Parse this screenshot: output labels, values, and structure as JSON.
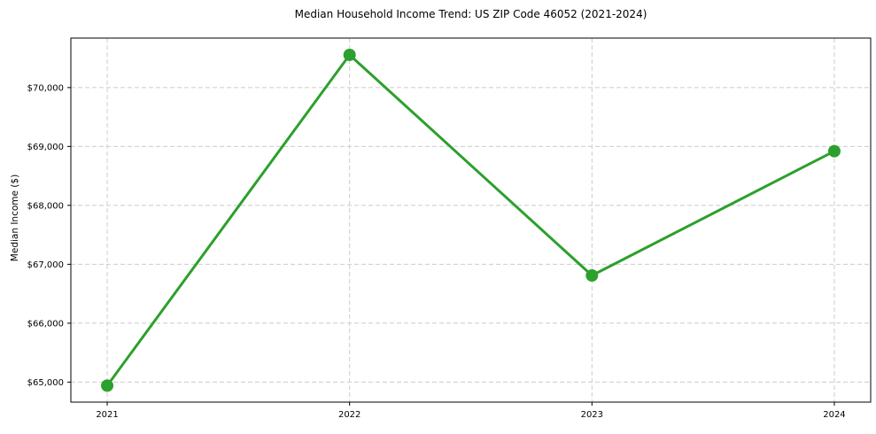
{
  "chart_data": {
    "type": "line",
    "title": "Median Household Income Trend: US ZIP Code 46052 (2021-2024)",
    "xlabel": "",
    "ylabel": "Median Income ($)",
    "categories": [
      "2021",
      "2022",
      "2023",
      "2024"
    ],
    "values": [
      64940,
      70555,
      66810,
      68920
    ],
    "ytick_values": [
      65000,
      66000,
      67000,
      68000,
      69000,
      70000
    ],
    "ytick_labels": [
      "$65,000",
      "$66,000",
      "$67,000",
      "$68,000",
      "$69,000",
      "$70,000"
    ],
    "ylim": [
      64660,
      70840
    ],
    "xlim": [
      2020.85,
      2024.15
    ],
    "grid": true,
    "legend": "none",
    "marker": "circle",
    "line_color": "#2ca02c",
    "grid_color": "#cccccc",
    "axis_color": "#000000",
    "text_color": "#000000",
    "background_color": "#ffffff"
  }
}
